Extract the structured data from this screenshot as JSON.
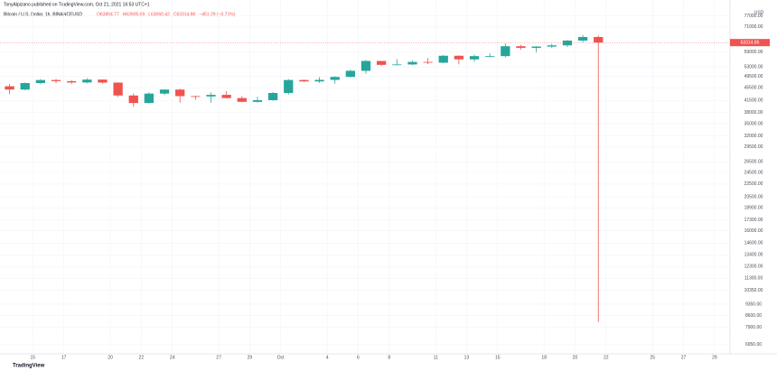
{
  "header": "TonyAlpizano published on TradingView.com, Oct 21, 2021 16:53 UTC+1",
  "logo": "TradingView",
  "chart_data": {
    "type": "candlestick",
    "title": "Bitcoin / U.S. Dollar, 1h, BINANCEUSD",
    "legend_values": [
      "O63894.77",
      "H63905.69",
      "L63060.42",
      "C63314.86",
      "−451.29 (−0.71%)"
    ],
    "currency": "USD",
    "up_color": "#26a69a",
    "down_color": "#ef5350",
    "log_scale": true,
    "grid": true,
    "x": [
      "Sep 13",
      "Sep 14",
      "Sep 15",
      "Sep 16",
      "Sep 17",
      "Sep 18",
      "Sep 19",
      "Sep 20",
      "Sep 21",
      "Sep 22",
      "Sep 23",
      "Sep 24",
      "Sep 25",
      "Sep 26",
      "Sep 27",
      "Sep 28",
      "Sep 29",
      "Sep 30",
      "Oct 1",
      "Oct 2",
      "Oct 3",
      "Oct 4",
      "Oct 5",
      "Oct 6",
      "Oct 7",
      "Oct 8",
      "Oct 9",
      "Oct 10",
      "Oct 11",
      "Oct 12",
      "Oct 13",
      "Oct 14",
      "Oct 15",
      "Oct 16",
      "Oct 17",
      "Oct 18",
      "Oct 19",
      "Oct 20",
      "Oct 21"
    ],
    "open": [
      46000,
      44900,
      47100,
      48150,
      47750,
      47300,
      48300,
      47250,
      43000,
      40700,
      43600,
      44900,
      42800,
      42700,
      43200,
      42200,
      41050,
      41550,
      43800,
      48150,
      47650,
      48200,
      49250,
      51500,
      55350,
      53800,
      53950,
      54950,
      54650,
      57500,
      56000,
      57350,
      57350,
      61650,
      60900,
      61500,
      62050,
      64250,
      65950
    ],
    "high": [
      46800,
      47250,
      48450,
      48500,
      48150,
      48800,
      48350,
      47350,
      43650,
      44000,
      45000,
      45200,
      42950,
      43950,
      44350,
      42800,
      42600,
      44100,
      48500,
      48350,
      49200,
      49500,
      51900,
      55750,
      55350,
      56100,
      55500,
      56550,
      57850,
      57700,
      58050,
      58500,
      62900,
      62300,
      61700,
      62650,
      64500,
      67000,
      66650
    ],
    "low": [
      43400,
      44700,
      46700,
      47000,
      46750,
      47000,
      46850,
      42500,
      39600,
      40550,
      43100,
      40800,
      41700,
      40800,
      42100,
      40900,
      40800,
      41400,
      43300,
      47450,
      47100,
      46900,
      49050,
      50400,
      53400,
      53700,
      53700,
      54100,
      54450,
      54000,
      55000,
      56800,
      56850,
      60100,
      58950,
      60850,
      61300,
      63500,
      8200
    ],
    "close": [
      44900,
      47100,
      48150,
      47750,
      47300,
      48300,
      47250,
      43000,
      40700,
      43600,
      44900,
      42800,
      42700,
      43200,
      42200,
      41050,
      41550,
      43800,
      48150,
      47650,
      48200,
      49250,
      51500,
      55350,
      53800,
      53950,
      54950,
      54650,
      57500,
      56000,
      57350,
      57350,
      61650,
      60900,
      61500,
      62050,
      64250,
      65950,
      63314.86
    ],
    "xlim": [
      "Sep 13",
      "Oct 30"
    ],
    "xticks": [
      {
        "value": "Sep 15",
        "label": "15"
      },
      {
        "value": "Sep 17",
        "label": "17"
      },
      {
        "value": "Sep 20",
        "label": "20"
      },
      {
        "value": "Sep 22",
        "label": "22"
      },
      {
        "value": "Sep 24",
        "label": "24"
      },
      {
        "value": "Sep 27",
        "label": "27"
      },
      {
        "value": "Sep 29",
        "label": "29"
      },
      {
        "value": "Oct 1",
        "label": "Oct"
      },
      {
        "value": "Oct 4",
        "label": "4"
      },
      {
        "value": "Oct 6",
        "label": "6"
      },
      {
        "value": "Oct 8",
        "label": "8"
      },
      {
        "value": "Oct 11",
        "label": "11"
      },
      {
        "value": "Oct 13",
        "label": "13"
      },
      {
        "value": "Oct 15",
        "label": "15"
      },
      {
        "value": "Oct 18",
        "label": "18"
      },
      {
        "value": "Oct 20",
        "label": "20"
      },
      {
        "value": "Oct 22",
        "label": "22"
      },
      {
        "value": "Oct 25",
        "label": "25"
      },
      {
        "value": "Oct 27",
        "label": "27"
      },
      {
        "value": "Oct 29",
        "label": "29"
      }
    ],
    "ylim": [
      6500,
      82000
    ],
    "yticks": [
      {
        "value": 77000,
        "label": "77000.00"
      },
      {
        "value": 71000,
        "label": "71000.00"
      },
      {
        "value": 59000,
        "label": "59000.00"
      },
      {
        "value": 53000,
        "label": "53000.00"
      },
      {
        "value": 49500,
        "label": "49500.00"
      },
      {
        "value": 45500,
        "label": "45500.00"
      },
      {
        "value": 41500,
        "label": "41500.00"
      },
      {
        "value": 38000,
        "label": "38000.00"
      },
      {
        "value": 35000,
        "label": "35000.00"
      },
      {
        "value": 32000,
        "label": "32000.00"
      },
      {
        "value": 29500,
        "label": "29500.00"
      },
      {
        "value": 26500,
        "label": "26500.00"
      },
      {
        "value": 24500,
        "label": "24500.00"
      },
      {
        "value": 22500,
        "label": "22500.00"
      },
      {
        "value": 20500,
        "label": "20500.00"
      },
      {
        "value": 18900,
        "label": "18900.00"
      },
      {
        "value": 17300,
        "label": "17300.00"
      },
      {
        "value": 16000,
        "label": "16000.00"
      },
      {
        "value": 14600,
        "label": "14600.00"
      },
      {
        "value": 13400,
        "label": "13400.00"
      },
      {
        "value": 12300,
        "label": "12300.00"
      },
      {
        "value": 11300,
        "label": "11300.00"
      },
      {
        "value": 10350,
        "label": "10350.00"
      },
      {
        "value": 9350,
        "label": "9350.00"
      },
      {
        "value": 8600,
        "label": "8600.00"
      },
      {
        "value": 7900,
        "label": "7900.00"
      },
      {
        "value": 6950,
        "label": "6950.00"
      }
    ]
  }
}
